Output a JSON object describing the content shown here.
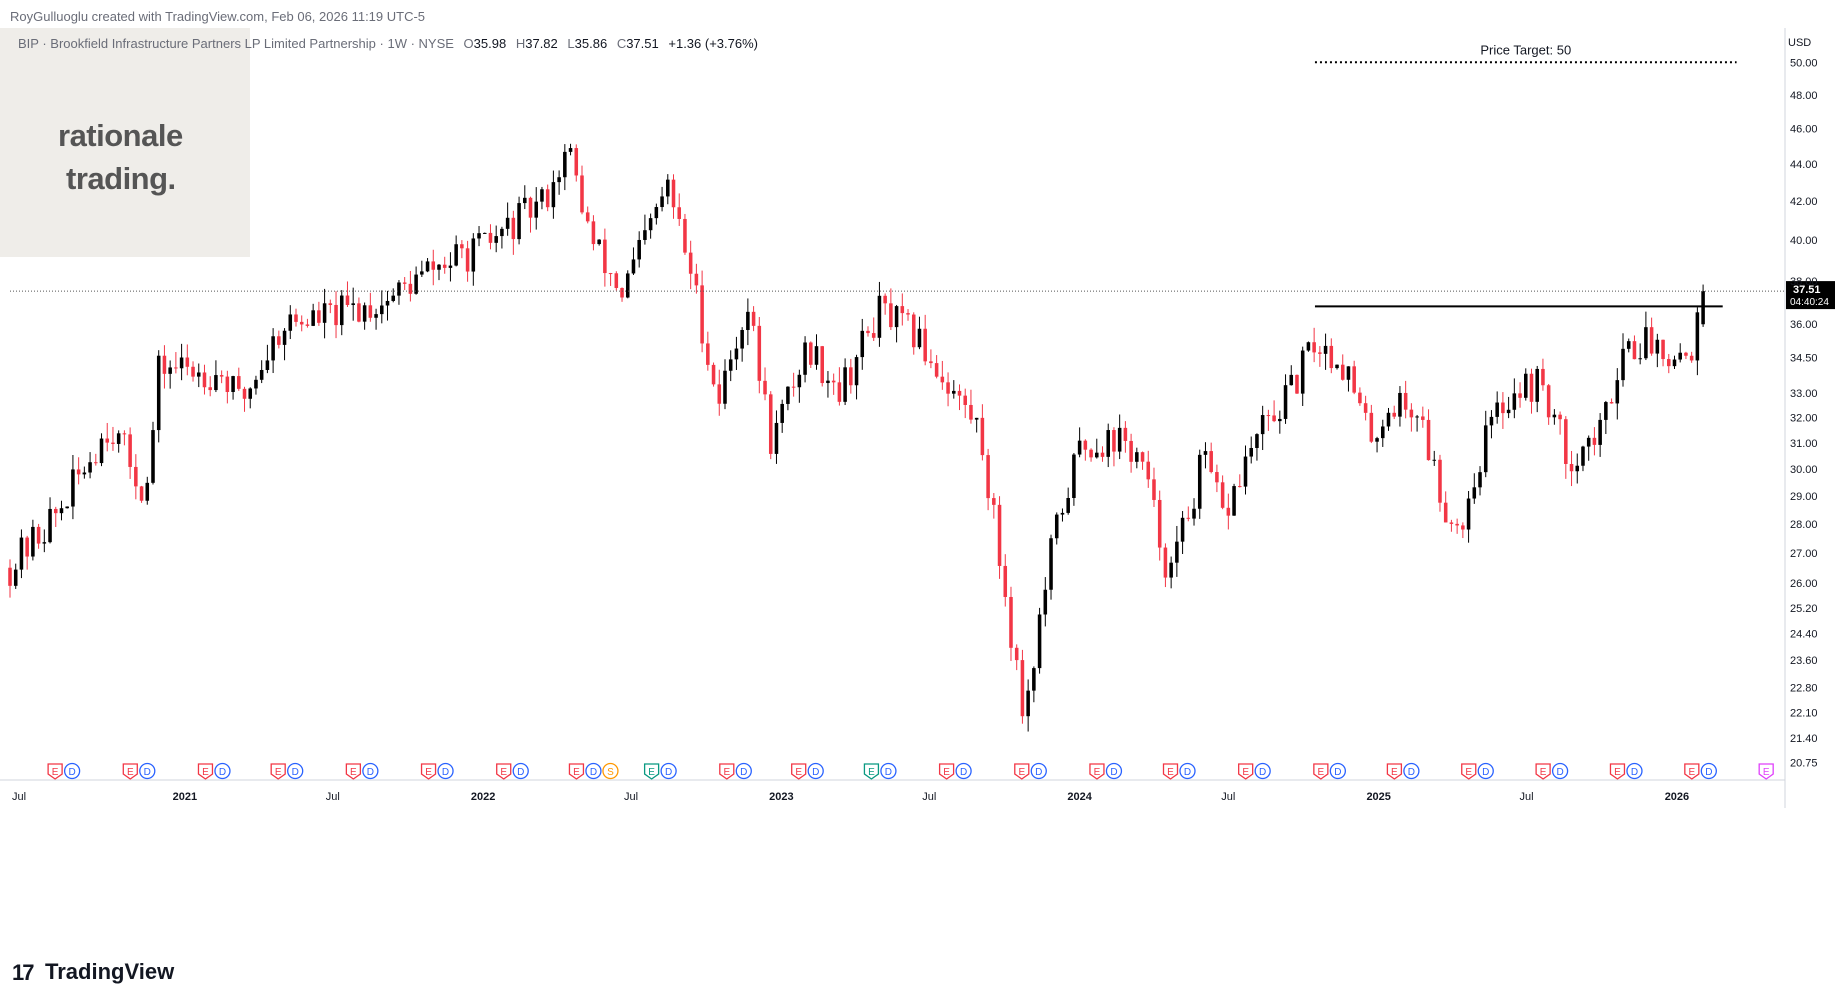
{
  "header": {
    "credit": "RoyGulluoglu created with TradingView.com, Feb 06, 2026 11:19 UTC-5"
  },
  "symbol": {
    "name": "BIP · Brookfield Infrastructure Partners LP Limited Partnership · 1W · NYSE",
    "open_label": "O",
    "open": "35.98",
    "high_label": "H",
    "high": "37.82",
    "low_label": "L",
    "low": "35.86",
    "close_label": "C",
    "close": "37.51",
    "change": "+1.36 (+3.76%)"
  },
  "logo": {
    "line1": "rationale",
    "line2": "trading."
  },
  "footer": {
    "brand": "TradingView",
    "brand_mark": "17"
  },
  "colors": {
    "up": "#000000",
    "down": "#f23645",
    "axis_text": "#131722",
    "grid": "#ffffff",
    "tag_bg": "#000000"
  },
  "chart_data": {
    "type": "candlestick",
    "title": "BIP · Brookfield Infrastructure Partners LP Limited Partnership · 1W · NYSE",
    "currency": "USD",
    "y_scale": "log",
    "ylim": [
      20.4,
      52.2
    ],
    "y_ticks": [
      "50.00",
      "48.00",
      "46.00",
      "44.00",
      "42.00",
      "40.00",
      "38.00",
      "36.00",
      "34.50",
      "33.00",
      "32.00",
      "31.00",
      "30.00",
      "29.00",
      "28.00",
      "27.00",
      "26.00",
      "25.20",
      "24.40",
      "23.60",
      "22.80",
      "22.10",
      "21.40",
      "20.75"
    ],
    "x_ticks": [
      "Jul",
      "2021",
      "Jul",
      "2022",
      "Jul",
      "2023",
      "Jul",
      "2024",
      "Jul",
      "2025",
      "Jul",
      "2026"
    ],
    "last_price": "37.51",
    "countdown": "04:40:24",
    "price_target": {
      "label": "Price Target: 50",
      "value": 50
    },
    "resistance_level": 36.8,
    "anchors": [
      {
        "date": "2020-06-01",
        "price": 26.5
      },
      {
        "date": "2020-08-01",
        "price": 28.5
      },
      {
        "date": "2020-10-01",
        "price": 31.8
      },
      {
        "date": "2020-11-15",
        "price": 29.0
      },
      {
        "date": "2020-12-01",
        "price": 34.2
      },
      {
        "date": "2021-02-15",
        "price": 33.8
      },
      {
        "date": "2021-03-10",
        "price": 32.6
      },
      {
        "date": "2021-05-01",
        "price": 36.0
      },
      {
        "date": "2021-07-01",
        "price": 36.4
      },
      {
        "date": "2021-09-01",
        "price": 37.0
      },
      {
        "date": "2021-11-01",
        "price": 38.6
      },
      {
        "date": "2022-01-01",
        "price": 39.6
      },
      {
        "date": "2022-03-15",
        "price": 42.0
      },
      {
        "date": "2022-04-15",
        "price": 44.8
      },
      {
        "date": "2022-05-15",
        "price": 39.8
      },
      {
        "date": "2022-06-20",
        "price": 37.4
      },
      {
        "date": "2022-08-15",
        "price": 42.8
      },
      {
        "date": "2022-09-15",
        "price": 38.0
      },
      {
        "date": "2022-10-15",
        "price": 32.6
      },
      {
        "date": "2022-11-20",
        "price": 37.0
      },
      {
        "date": "2022-12-20",
        "price": 31.0
      },
      {
        "date": "2023-02-01",
        "price": 35.0
      },
      {
        "date": "2023-03-15",
        "price": 33.2
      },
      {
        "date": "2023-05-01",
        "price": 36.6
      },
      {
        "date": "2023-06-15",
        "price": 35.4
      },
      {
        "date": "2023-08-01",
        "price": 33.0
      },
      {
        "date": "2023-09-01",
        "price": 31.5
      },
      {
        "date": "2023-10-25",
        "price": 22.0
      },
      {
        "date": "2023-12-01",
        "price": 27.6
      },
      {
        "date": "2024-01-01",
        "price": 30.8
      },
      {
        "date": "2024-02-15",
        "price": 31.2
      },
      {
        "date": "2024-03-15",
        "price": 30.4
      },
      {
        "date": "2024-04-20",
        "price": 26.2
      },
      {
        "date": "2024-06-01",
        "price": 30.4
      },
      {
        "date": "2024-06-25",
        "price": 28.2
      },
      {
        "date": "2024-08-01",
        "price": 31.0
      },
      {
        "date": "2024-09-15",
        "price": 33.0
      },
      {
        "date": "2024-10-15",
        "price": 35.2
      },
      {
        "date": "2024-11-20",
        "price": 34.2
      },
      {
        "date": "2024-12-20",
        "price": 31.2
      },
      {
        "date": "2025-01-20",
        "price": 32.6
      },
      {
        "date": "2025-02-20",
        "price": 32.2
      },
      {
        "date": "2025-03-20",
        "price": 28.8
      },
      {
        "date": "2025-04-10",
        "price": 27.8
      },
      {
        "date": "2025-05-15",
        "price": 31.6
      },
      {
        "date": "2025-06-15",
        "price": 33.2
      },
      {
        "date": "2025-07-20",
        "price": 33.4
      },
      {
        "date": "2025-08-20",
        "price": 30.4
      },
      {
        "date": "2025-10-01",
        "price": 31.4
      },
      {
        "date": "2025-10-25",
        "price": 35.0
      },
      {
        "date": "2025-11-30",
        "price": 35.2
      },
      {
        "date": "2026-01-15",
        "price": 34.6
      },
      {
        "date": "2026-02-06",
        "price": 37.51
      }
    ],
    "events": [
      {
        "date": "2020-08-05",
        "types": [
          "E",
          "D"
        ]
      },
      {
        "date": "2020-11-05",
        "types": [
          "E",
          "D"
        ]
      },
      {
        "date": "2021-02-05",
        "types": [
          "E",
          "D"
        ]
      },
      {
        "date": "2021-05-05",
        "types": [
          "E",
          "D"
        ]
      },
      {
        "date": "2021-08-05",
        "types": [
          "E",
          "D"
        ]
      },
      {
        "date": "2021-11-05",
        "types": [
          "E",
          "D"
        ]
      },
      {
        "date": "2022-02-05",
        "types": [
          "E",
          "D"
        ]
      },
      {
        "date": "2022-05-05",
        "types": [
          "E",
          "D",
          "S"
        ]
      },
      {
        "date": "2022-08-05",
        "types": [
          "E",
          "D"
        ]
      },
      {
        "date": "2022-11-05",
        "types": [
          "E",
          "D"
        ]
      },
      {
        "date": "2023-02-01",
        "types": [
          "E",
          "D"
        ]
      },
      {
        "date": "2023-05-01",
        "types": [
          "E",
          "D"
        ]
      },
      {
        "date": "2023-08-01",
        "types": [
          "E",
          "D"
        ]
      },
      {
        "date": "2023-11-01",
        "types": [
          "E",
          "D"
        ]
      },
      {
        "date": "2024-02-01",
        "types": [
          "E",
          "D"
        ]
      },
      {
        "date": "2024-05-01",
        "types": [
          "E",
          "D"
        ]
      },
      {
        "date": "2024-08-01",
        "types": [
          "E",
          "D"
        ]
      },
      {
        "date": "2024-11-01",
        "types": [
          "E",
          "D"
        ]
      },
      {
        "date": "2025-01-30",
        "types": [
          "E",
          "D"
        ]
      },
      {
        "date": "2025-05-01",
        "types": [
          "E",
          "D"
        ]
      },
      {
        "date": "2025-07-31",
        "types": [
          "E",
          "D"
        ]
      },
      {
        "date": "2025-10-30",
        "types": [
          "E",
          "D"
        ]
      },
      {
        "date": "2026-01-29",
        "types": [
          "E",
          "D"
        ]
      },
      {
        "date": "2026-04-30",
        "types": [
          "E"
        ]
      }
    ],
    "event_colors": {
      "E_red": "#f23645",
      "E_green": "#089981",
      "D": "#2962ff",
      "S": "#ff9800",
      "E_future": "#e040fb"
    }
  }
}
